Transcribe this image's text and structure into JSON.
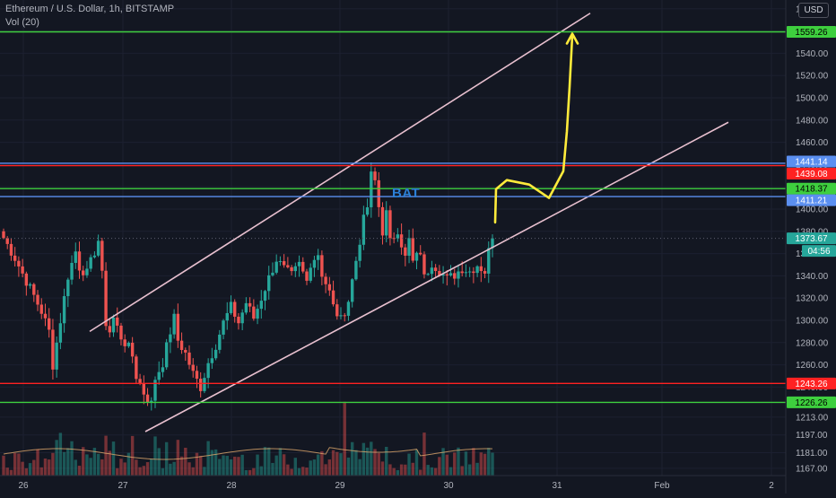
{
  "header": {
    "title": "Ethereum / U.S. Dollar, 1h, BITSTAMP",
    "volume_label": "Vol (20)"
  },
  "currency_button": "USD",
  "annotation": "BAT",
  "colors": {
    "background": "#131722",
    "up": "#26a69a",
    "down": "#ef5350",
    "support_green": "#3ecf3e",
    "resistance_red": "#ff2222",
    "blue_line": "#5b8ff0",
    "channel": "#e8c0cf",
    "projection": "#ffeb3b",
    "axis_text": "#b2b5be"
  },
  "chart_data": {
    "type": "candlestick",
    "title": "Ethereum / U.S. Dollar, 1h, BITSTAMP",
    "x_ticks": [
      "26",
      "27",
      "28",
      "29",
      "30",
      "31",
      "Feb",
      "2"
    ],
    "y_ticks": [
      1167.0,
      1181.0,
      1197.0,
      1213.0,
      1226.0,
      1240.0,
      1260.0,
      1280.0,
      1300.0,
      1320.0,
      1340.0,
      1360.0,
      1380.0,
      1400.0,
      1420.0,
      1440.0,
      1460.0,
      1480.0,
      1500.0,
      1520.0,
      1540.0,
      1560.0,
      1580.0
    ],
    "price_lines": [
      {
        "value": 1559.26,
        "label": "1559.26",
        "color": "#3ecf3e"
      },
      {
        "value": 1441.14,
        "label": "1441.14",
        "color": "#5b8ff0"
      },
      {
        "value": 1439.08,
        "label": "1439.08",
        "color": "#ff2222"
      },
      {
        "value": 1418.37,
        "label": "1418.37",
        "color": "#3ecf3e"
      },
      {
        "value": 1411.21,
        "label": "1411.21",
        "color": "#5b8ff0"
      },
      {
        "value": 1243.26,
        "label": "1243.26",
        "color": "#ff2222"
      },
      {
        "value": 1226.26,
        "label": "1226.26",
        "color": "#3ecf3e"
      }
    ],
    "last_price": {
      "value": 1373.67,
      "label": "1373.67",
      "countdown": "04:56"
    },
    "price_path": [
      [
        0,
        1374
      ],
      [
        3,
        1356
      ],
      [
        5,
        1342
      ],
      [
        8,
        1322
      ],
      [
        10,
        1308
      ],
      [
        12,
        1290
      ],
      [
        13,
        1260
      ],
      [
        15,
        1300
      ],
      [
        17,
        1340
      ],
      [
        19,
        1362
      ],
      [
        20,
        1348
      ],
      [
        22,
        1342
      ],
      [
        23,
        1352
      ],
      [
        25,
        1372
      ],
      [
        26,
        1340
      ],
      [
        27,
        1298
      ],
      [
        28,
        1290
      ],
      [
        29,
        1302
      ],
      [
        31,
        1285
      ],
      [
        33,
        1275
      ],
      [
        34,
        1268
      ],
      [
        35,
        1250
      ],
      [
        37,
        1235
      ],
      [
        39,
        1225
      ],
      [
        40,
        1248
      ],
      [
        42,
        1262
      ],
      [
        44,
        1290
      ],
      [
        45,
        1302
      ],
      [
        46,
        1282
      ],
      [
        48,
        1270
      ],
      [
        50,
        1252
      ],
      [
        52,
        1240
      ],
      [
        54,
        1262
      ],
      [
        56,
        1278
      ],
      [
        58,
        1298
      ],
      [
        60,
        1312
      ],
      [
        62,
        1298
      ],
      [
        64,
        1316
      ],
      [
        66,
        1302
      ],
      [
        68,
        1320
      ],
      [
        70,
        1338
      ],
      [
        72,
        1355
      ],
      [
        74,
        1346
      ],
      [
        76,
        1340
      ],
      [
        78,
        1350
      ],
      [
        80,
        1335
      ],
      [
        81,
        1352
      ],
      [
        83,
        1360
      ],
      [
        84,
        1342
      ],
      [
        86,
        1325
      ],
      [
        87,
        1312
      ],
      [
        89,
        1300
      ],
      [
        91,
        1318
      ],
      [
        92,
        1336
      ],
      [
        94,
        1372
      ],
      [
        95,
        1390
      ],
      [
        96,
        1402
      ],
      [
        97,
        1430
      ],
      [
        98,
        1425
      ],
      [
        99,
        1402
      ],
      [
        100,
        1380
      ],
      [
        101,
        1396
      ],
      [
        102,
        1370
      ],
      [
        104,
        1382
      ],
      [
        106,
        1356
      ],
      [
        107,
        1372
      ],
      [
        108,
        1352
      ],
      [
        110,
        1362
      ],
      [
        111,
        1338
      ],
      [
        113,
        1352
      ],
      [
        115,
        1345
      ],
      [
        117,
        1337
      ],
      [
        119,
        1341
      ],
      [
        121,
        1347
      ],
      [
        123,
        1344
      ],
      [
        125,
        1350
      ],
      [
        127,
        1344
      ],
      [
        128,
        1362
      ],
      [
        129,
        1374
      ]
    ],
    "volume_spikes": [
      [
        90,
        3.2
      ],
      [
        94,
        1.9
      ],
      [
        97,
        2.1
      ],
      [
        29,
        1.5
      ],
      [
        37,
        1.6
      ]
    ],
    "channel_upper": [
      [
        100,
        1290
      ],
      [
        658,
        1576
      ]
    ],
    "channel_lower": [
      [
        162,
        1200
      ],
      [
        812,
        1478
      ]
    ],
    "projection_path": [
      [
        552,
        1388
      ],
      [
        553,
        1418
      ],
      [
        565,
        1426
      ],
      [
        590,
        1422
      ],
      [
        612,
        1410
      ],
      [
        628,
        1434
      ],
      [
        632,
        1470
      ],
      [
        635,
        1510
      ],
      [
        638,
        1556
      ]
    ]
  }
}
